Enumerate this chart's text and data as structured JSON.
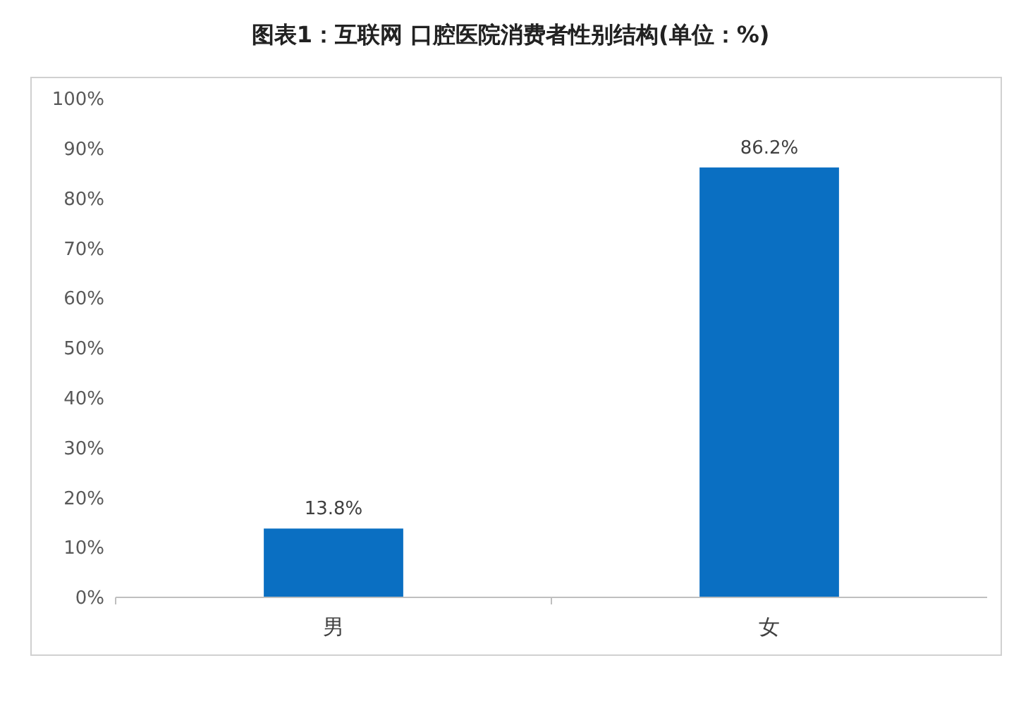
{
  "chart_data": {
    "type": "bar",
    "title": "图表1：互联网 口腔医院消费者性别结构(单位：%)",
    "categories": [
      "男",
      "女"
    ],
    "values": [
      13.8,
      86.2
    ],
    "color": "#0a6fc2",
    "value_labels": [
      "13.8%",
      "86.2%"
    ],
    "ylim": [
      0,
      100
    ],
    "yticks": [
      {
        "value": 0,
        "label": "0%"
      },
      {
        "value": 10,
        "label": "10%"
      },
      {
        "value": 20,
        "label": "20%"
      },
      {
        "value": 30,
        "label": "30%"
      },
      {
        "value": 40,
        "label": "40%"
      },
      {
        "value": 50,
        "label": "50%"
      },
      {
        "value": 60,
        "label": "60%"
      },
      {
        "value": 70,
        "label": "70%"
      },
      {
        "value": 80,
        "label": "80%"
      },
      {
        "value": 90,
        "label": "90%"
      },
      {
        "value": 100,
        "label": "100%"
      }
    ],
    "grid": false
  }
}
